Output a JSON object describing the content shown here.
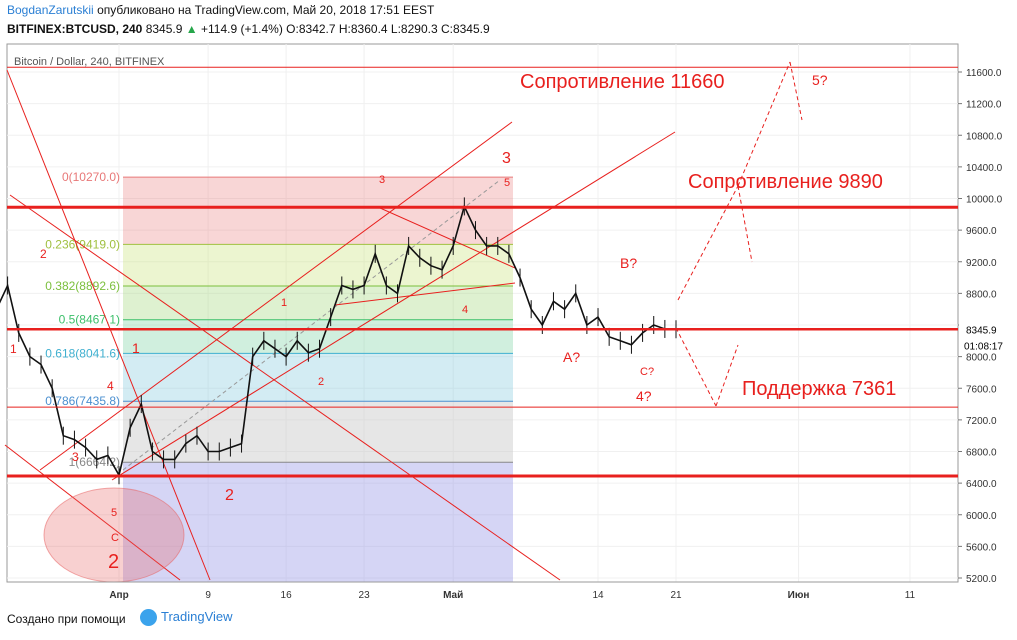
{
  "header": {
    "author": "BogdanZarutskii",
    "published": "опубликовано на TradingView.com, Май 20, 2018 17:51 EEST",
    "symbol": "BITFINEX:BTCUSD, 240",
    "last": "8345.9",
    "change": "+114.9 (+1.4%)",
    "ohlc": "O:8342.7 H:8360.4 L:8290.3 C:8345.9"
  },
  "footer": {
    "created_by": "Создано при помощи",
    "brand": "TradingView"
  },
  "chart_data": {
    "type": "line",
    "title": "Bitcoin / Dollar, 240, BITFINEX",
    "ylim": [
      5150,
      11950
    ],
    "y_ticks": [
      5200,
      5600,
      6000,
      6400,
      6800,
      7200,
      7600,
      8000,
      8400,
      8800,
      9200,
      9600,
      10000,
      10400,
      10800,
      11200,
      11600
    ],
    "y_tick_labels": [
      "5200.0",
      "5600.0",
      "6000.0",
      "6400.0",
      "6800.0",
      "7200.0",
      "7600.0",
      "8000.0",
      "8400.0",
      "8800.0",
      "9200.0",
      "9600.0",
      "10000.0",
      "10400.0",
      "10800.0",
      "11200.0",
      "11600.0"
    ],
    "x_ticks": [
      "Апр",
      "9",
      "16",
      "23",
      "Май",
      "14",
      "21",
      "Июн",
      "11"
    ],
    "x_tick_day": [
      0,
      8,
      15,
      22,
      30,
      43,
      50,
      61,
      71
    ],
    "last_price": {
      "value": 8345.9,
      "label": "8345.9",
      "countdown": "01:08:17"
    },
    "series": [
      {
        "x": [
          -11,
          -10,
          -9,
          -8,
          -7,
          -6,
          -5,
          -4,
          -3,
          -2,
          -1,
          0,
          1,
          2,
          3,
          4,
          5,
          6,
          7,
          8,
          9,
          10,
          11,
          12,
          13,
          14,
          15,
          16,
          17,
          18,
          19,
          20,
          21,
          22,
          23,
          24,
          25,
          26,
          27,
          28,
          29,
          30,
          31,
          32,
          33,
          34,
          35,
          36,
          37,
          38,
          39,
          40,
          41,
          42,
          43,
          44,
          45,
          46,
          47,
          48,
          49,
          50
        ],
        "y": [
          8600,
          8900,
          8300,
          8000,
          7900,
          7600,
          7000,
          6950,
          6850,
          6700,
          6750,
          6500,
          7100,
          7400,
          6800,
          6700,
          6700,
          6900,
          7000,
          6800,
          6800,
          6850,
          6900,
          8000,
          8200,
          8100,
          8000,
          8200,
          8050,
          8100,
          8500,
          8900,
          8850,
          8900,
          9300,
          8900,
          8800,
          9400,
          9250,
          9150,
          9100,
          9400,
          9900,
          9600,
          9400,
          9400,
          9300,
          9000,
          8600,
          8400,
          8700,
          8600,
          8800,
          8400,
          8500,
          8250,
          8200,
          8150,
          8300,
          8400,
          8350,
          8345.9
        ]
      }
    ],
    "fibonacci": [
      {
        "label": "0(10270.0)",
        "value": 10270
      },
      {
        "label": "0.236(9419.0)",
        "value": 9419
      },
      {
        "label": "0.382(8892.6)",
        "value": 8892.6
      },
      {
        "label": "0.5(8467.1)",
        "value": 8467.1
      },
      {
        "label": "0.618(8041.6)",
        "value": 8041.6
      },
      {
        "label": "0.786(7435.8)",
        "value": 7435.8
      },
      {
        "label": "1(6664.2)",
        "value": 6664.2
      }
    ],
    "horizontal_levels": [
      9890,
      8345.9,
      6490,
      7361,
      11660
    ],
    "annotations": [
      {
        "text": "Сопротивление 11660"
      },
      {
        "text": "Сопротивление 9890"
      },
      {
        "text": "Поддержка 7361"
      },
      {
        "text": "5?"
      },
      {
        "text": "3"
      },
      {
        "text": "5"
      },
      {
        "text": "3"
      },
      {
        "text": "B?"
      },
      {
        "text": "A?"
      },
      {
        "text": "C?"
      },
      {
        "text": "4?"
      },
      {
        "text": "1"
      },
      {
        "text": "2"
      },
      {
        "text": "1"
      },
      {
        "text": "4"
      },
      {
        "text": "3"
      },
      {
        "text": "1"
      },
      {
        "text": "2"
      },
      {
        "text": "4"
      },
      {
        "text": "2"
      },
      {
        "text": "5"
      },
      {
        "text": "C"
      },
      {
        "text": "2"
      }
    ],
    "colors": {
      "candles": "#111111",
      "levels": "#e8201e",
      "annotation": "#e8201e"
    }
  }
}
